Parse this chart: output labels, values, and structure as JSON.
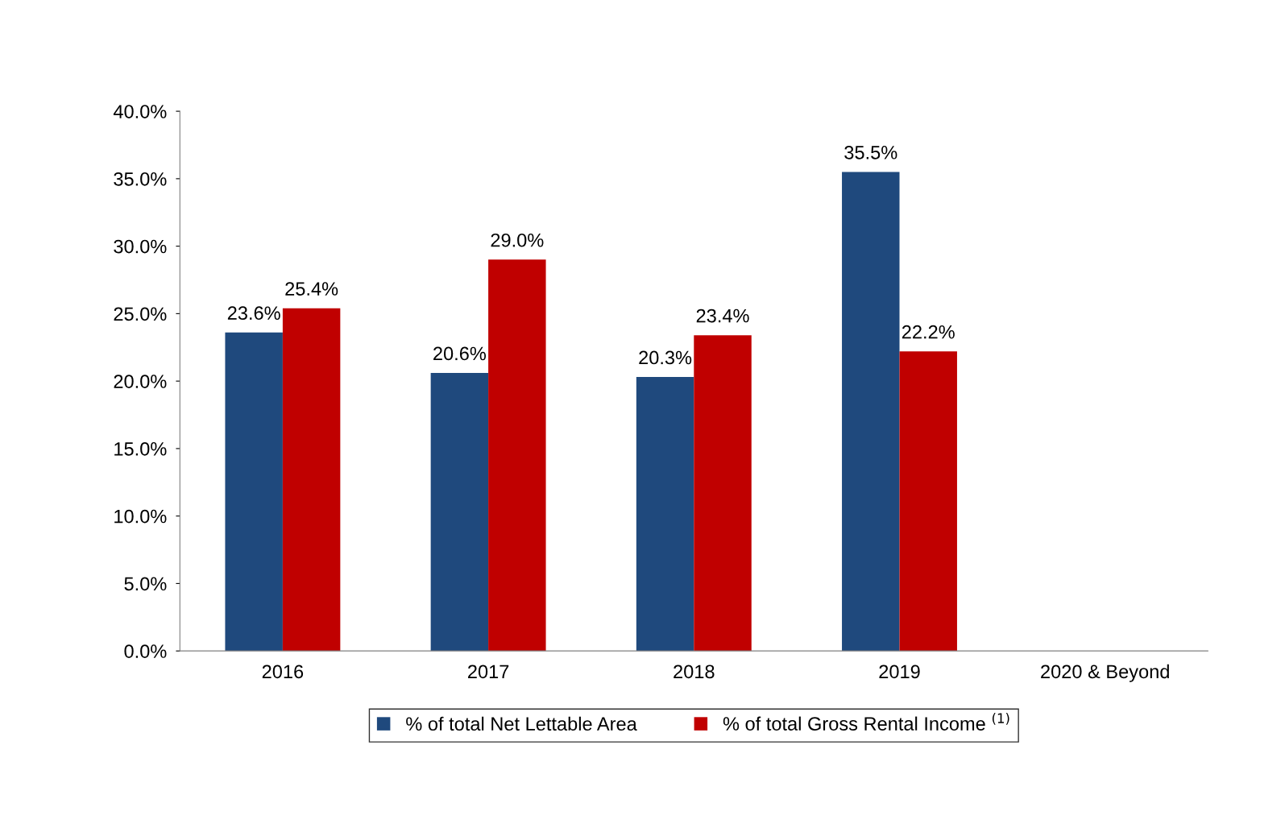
{
  "chart_data": {
    "type": "bar",
    "categories": [
      "2016",
      "2017",
      "2018",
      "2019",
      "2020 & Beyond"
    ],
    "series": [
      {
        "name": "% of total Net Lettable Area",
        "color": "#1f497d",
        "values": [
          23.6,
          20.6,
          20.3,
          35.5,
          null
        ],
        "value_labels": [
          "23.6%",
          "20.6%",
          "20.3%",
          "35.5%",
          null
        ]
      },
      {
        "name": "% of total Gross Rental Income $^{(1)}$",
        "color": "#c00000",
        "values": [
          25.4,
          29.0,
          23.4,
          22.2,
          null
        ],
        "value_labels": [
          "25.4%",
          "29.0%",
          "23.4%",
          "22.2%",
          null
        ]
      }
    ],
    "ylim": [
      0,
      40
    ],
    "yticks": [
      {
        "value": 0,
        "label": "0.0%"
      },
      {
        "value": 5,
        "label": "5.0%"
      },
      {
        "value": 10,
        "label": "10.0%"
      },
      {
        "value": 15,
        "label": "15.0%"
      },
      {
        "value": 20,
        "label": "20.0%"
      },
      {
        "value": 25,
        "label": "25.0%"
      },
      {
        "value": 30,
        "label": "30.0%"
      },
      {
        "value": 35,
        "label": "35.0%"
      },
      {
        "value": 40,
        "label": "40.0%"
      }
    ],
    "grid": false,
    "legend": "bottom"
  }
}
